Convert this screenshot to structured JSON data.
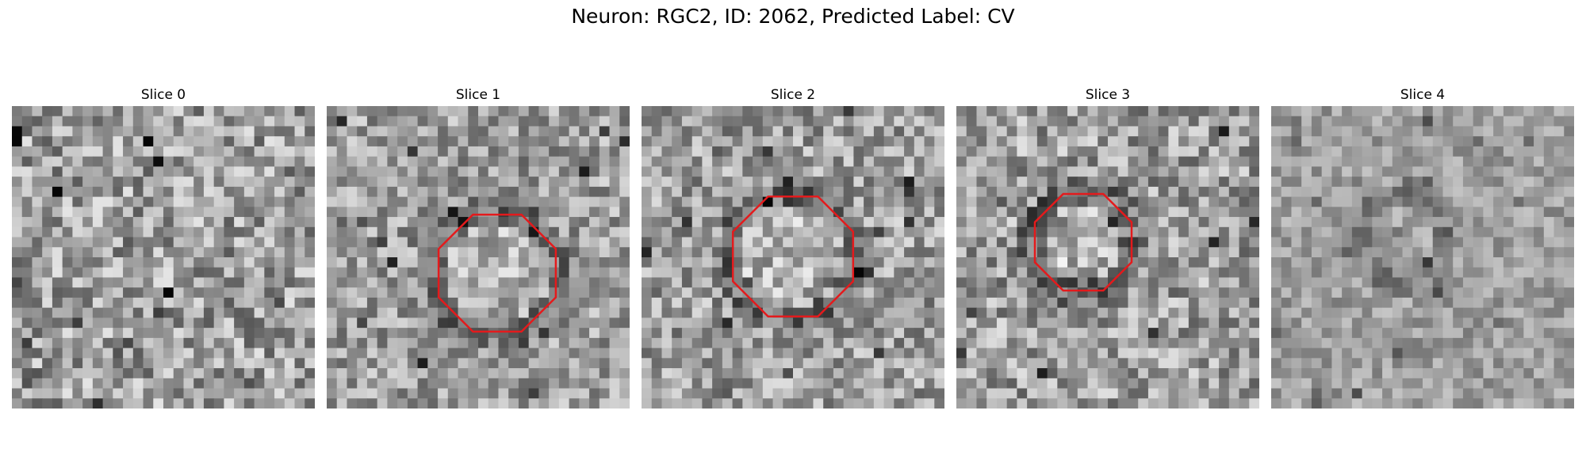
{
  "figure": {
    "title": "Neuron: RGC2, ID: 2062, Predicted Label: CV",
    "panels": [
      {
        "title": "Slice 0",
        "roi": false,
        "dark_ring": false,
        "seed": 11,
        "contrast": 1.0
      },
      {
        "title": "Slice 1",
        "roi": true,
        "dark_ring": true,
        "seed": 23,
        "contrast": 0.85
      },
      {
        "title": "Slice 2",
        "roi": true,
        "dark_ring": true,
        "seed": 37,
        "contrast": 0.9
      },
      {
        "title": "Slice 3",
        "roi": true,
        "dark_ring": true,
        "seed": 53,
        "contrast": 0.95
      },
      {
        "title": "Slice 4",
        "roi": false,
        "dark_ring": true,
        "seed": 71,
        "contrast": 0.55
      }
    ],
    "colormap": "gray",
    "roi_color": "#e41a1c"
  }
}
